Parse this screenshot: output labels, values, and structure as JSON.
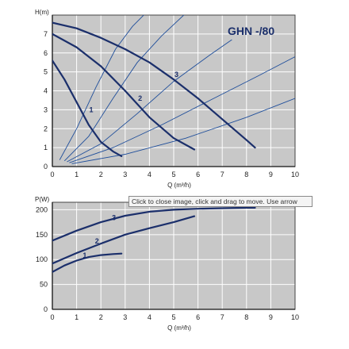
{
  "chart_data": [
    {
      "type": "line",
      "title": "GHN -/80",
      "ylabel": "H(m)",
      "xlabel": "Q (m³/h)",
      "xlim": [
        0,
        10
      ],
      "ylim": [
        0,
        8
      ],
      "x_ticks": [
        "0",
        "1",
        "2",
        "3",
        "4",
        "5",
        "6",
        "7",
        "8",
        "9",
        "10"
      ],
      "y_ticks": [
        "0",
        "1",
        "2",
        "3",
        "4",
        "5",
        "6",
        "7"
      ],
      "grid": true,
      "series": [
        {
          "name": "1",
          "x": [
            0,
            0.5,
            1.0,
            1.5,
            2.0,
            2.5,
            2.85
          ],
          "y": [
            5.6,
            4.6,
            3.4,
            2.2,
            1.3,
            0.8,
            0.55
          ]
        },
        {
          "name": "2",
          "x": [
            0,
            1,
            2,
            3,
            4,
            5,
            5.85
          ],
          "y": [
            7.0,
            6.3,
            5.3,
            4.0,
            2.6,
            1.5,
            0.9
          ]
        },
        {
          "name": "3",
          "x": [
            0,
            1,
            2,
            3,
            4,
            5,
            6,
            7,
            8,
            8.35
          ],
          "y": [
            7.6,
            7.3,
            6.8,
            6.2,
            5.5,
            4.6,
            3.6,
            2.5,
            1.4,
            1.0
          ]
        }
      ],
      "system_curves": [
        {
          "x": [
            0.3,
            1.0,
            1.8,
            2.6,
            3.3,
            4.0
          ],
          "y": [
            0.35,
            2.0,
            4.2,
            6.2,
            7.4,
            8.3
          ]
        },
        {
          "x": [
            0.5,
            1.5,
            2.5,
            3.5,
            4.5,
            5.5
          ],
          "y": [
            0.3,
            1.6,
            3.6,
            5.5,
            6.9,
            8.1
          ]
        },
        {
          "x": [
            0.6,
            2.0,
            3.5,
            5.0,
            6.5,
            7.4
          ],
          "y": [
            0.25,
            1.2,
            2.8,
            4.5,
            5.9,
            6.7
          ]
        },
        {
          "x": [
            0.7,
            2.5,
            4.5,
            6.5,
            8.5,
            10.0
          ],
          "y": [
            0.2,
            1.0,
            2.2,
            3.5,
            4.8,
            5.8
          ]
        },
        {
          "x": [
            0.8,
            3.0,
            5.5,
            8.0,
            10.0
          ],
          "y": [
            0.15,
            0.65,
            1.5,
            2.6,
            3.6
          ]
        }
      ],
      "colors": {
        "curve": "#1b2f6b",
        "system_curve": "#1f4e9b",
        "grid": "#ffffff",
        "plot_bg": "#c8c8c8",
        "title": "#1b2f6b"
      }
    },
    {
      "type": "line",
      "ylabel": "P(W)",
      "xlabel": "Q (m³/h)",
      "xlim": [
        0,
        10
      ],
      "ylim": [
        0,
        215
      ],
      "x_ticks": [
        "0",
        "1",
        "2",
        "3",
        "4",
        "5",
        "6",
        "7",
        "8",
        "9",
        "10"
      ],
      "y_ticks": [
        "0",
        "50",
        "100",
        "150",
        "200"
      ],
      "grid": true,
      "series": [
        {
          "name": "1",
          "x": [
            0,
            0.5,
            1.0,
            1.5,
            2.0,
            2.5,
            2.85
          ],
          "y": [
            75,
            88,
            98,
            105,
            109,
            111,
            112
          ]
        },
        {
          "name": "2",
          "x": [
            0,
            1,
            2,
            3,
            4,
            5,
            5.85
          ],
          "y": [
            92,
            113,
            132,
            150,
            163,
            175,
            187
          ]
        },
        {
          "name": "3",
          "x": [
            0,
            1,
            2,
            3,
            4,
            5,
            6,
            7,
            8,
            8.35
          ],
          "y": [
            138,
            158,
            175,
            188,
            196,
            200,
            202,
            203,
            204,
            204
          ]
        }
      ],
      "colors": {
        "curve": "#1b2f6b",
        "grid": "#ffffff",
        "plot_bg": "#c8c8c8"
      }
    }
  ],
  "tooltip": {
    "text": "Click to close image, click and drag to move. Use arrow"
  }
}
